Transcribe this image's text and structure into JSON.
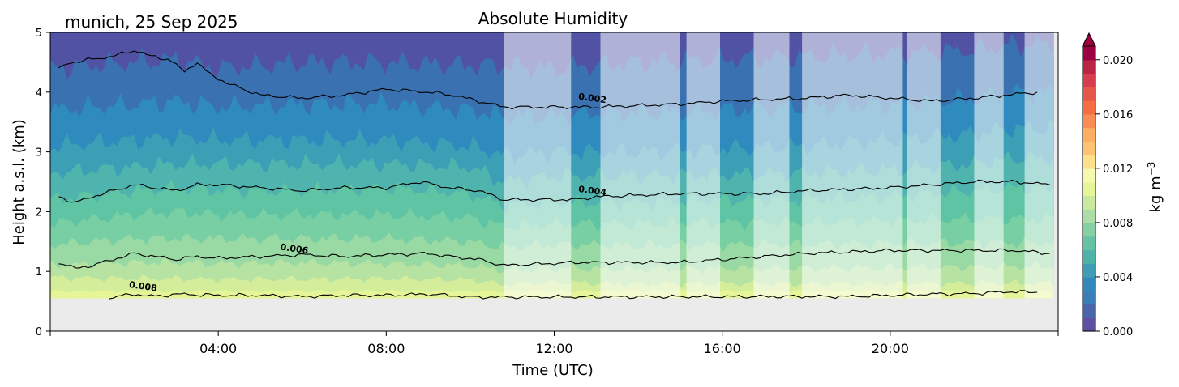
{
  "chart_data": {
    "type": "contour",
    "title": "Absolute Humidity",
    "location_date": "munich, 25 Sep 2025",
    "xlabel": "Time (UTC)",
    "ylabel": "Height a.s.l. (km)",
    "xlim_hours": [
      0,
      24
    ],
    "ylim_km": [
      0,
      5
    ],
    "x_ticks": [
      {
        "hour": 4,
        "label": "04:00"
      },
      {
        "hour": 8,
        "label": "08:00"
      },
      {
        "hour": 12,
        "label": "12:00"
      },
      {
        "hour": 16,
        "label": "16:00"
      },
      {
        "hour": 20,
        "label": "20:00"
      }
    ],
    "y_ticks": [
      {
        "value": 0,
        "label": "0"
      },
      {
        "value": 1,
        "label": "1"
      },
      {
        "value": 2,
        "label": "2"
      },
      {
        "value": 3,
        "label": "3"
      },
      {
        "value": 4,
        "label": "4"
      },
      {
        "value": 5,
        "label": "5"
      }
    ],
    "data_floor_km": 0.55,
    "data_end_hour": 23.9,
    "humidity_levels_kg_m3": [
      0.0,
      0.001,
      0.002,
      0.003,
      0.004,
      0.005,
      0.006,
      0.007,
      0.008,
      0.009,
      0.01
    ],
    "level_colors": [
      "#5152a4",
      "#3a71b1",
      "#2f8abd",
      "#3d9fb6",
      "#4fb4ad",
      "#5ec4a4",
      "#78cfa3",
      "#98d9a4",
      "#b7e3a2",
      "#d4ed9a",
      "#e6f598"
    ],
    "band_top_profiles_km": {
      "hours": [
        0,
        2,
        3,
        4,
        6,
        8,
        10,
        10.8,
        12,
        13,
        14,
        16,
        18,
        20,
        22,
        23
      ],
      "bands": [
        [
          0.9,
          0.88,
          0.88,
          0.87,
          0.87,
          0.88,
          0.86,
          0.78,
          0.82,
          0.8,
          0.78,
          0.8,
          0.79,
          0.8,
          0.8,
          0.8
        ],
        [
          1.1,
          1.15,
          1.15,
          1.13,
          1.15,
          1.13,
          1.1,
          1.02,
          1.05,
          1.05,
          1.03,
          1.05,
          1.05,
          1.06,
          1.08,
          1.08
        ],
        [
          1.45,
          1.55,
          1.55,
          1.55,
          1.55,
          1.55,
          1.5,
          1.4,
          1.45,
          1.45,
          1.43,
          1.45,
          1.45,
          1.47,
          1.48,
          1.48
        ],
        [
          1.8,
          1.95,
          2.0,
          1.95,
          1.95,
          1.95,
          1.9,
          1.75,
          1.8,
          1.8,
          1.8,
          1.82,
          1.82,
          1.85,
          1.88,
          1.88
        ],
        [
          2.2,
          2.35,
          2.4,
          2.35,
          2.35,
          2.4,
          2.3,
          2.1,
          2.15,
          2.15,
          2.15,
          2.2,
          2.2,
          2.25,
          2.35,
          2.4
        ],
        [
          2.65,
          2.75,
          2.8,
          2.8,
          2.8,
          2.8,
          2.75,
          2.5,
          2.6,
          2.6,
          2.6,
          2.62,
          2.65,
          2.7,
          2.8,
          2.9
        ],
        [
          3.1,
          3.2,
          3.25,
          3.2,
          3.2,
          3.2,
          3.1,
          2.95,
          3.0,
          3.0,
          3.0,
          3.05,
          3.1,
          3.2,
          3.3,
          3.4
        ],
        [
          3.7,
          3.8,
          3.85,
          3.75,
          3.8,
          3.8,
          3.7,
          3.6,
          3.6,
          3.65,
          3.65,
          3.7,
          3.75,
          3.8,
          3.9,
          4.0
        ],
        [
          4.4,
          4.5,
          4.55,
          4.4,
          4.5,
          4.5,
          4.45,
          4.45,
          4.4,
          4.45,
          4.5,
          4.55,
          4.6,
          4.65,
          4.7,
          4.8
        ],
        [
          5.0,
          5.0,
          5.0,
          5.0,
          5.0,
          5.0,
          5.0,
          5.0,
          5.0,
          5.0,
          5.0,
          5.0,
          5.0,
          5.0,
          5.0,
          5.0
        ]
      ]
    },
    "contour_lines": [
      {
        "label": "0.002",
        "label_hour": 12.9,
        "label_km": 3.85,
        "points": [
          [
            0.2,
            4.4
          ],
          [
            0.5,
            4.5
          ],
          [
            1,
            4.55
          ],
          [
            1.5,
            4.6
          ],
          [
            2,
            4.7
          ],
          [
            2.3,
            4.62
          ],
          [
            2.8,
            4.55
          ],
          [
            3.2,
            4.35
          ],
          [
            3.5,
            4.5
          ],
          [
            3.7,
            4.35
          ],
          [
            4.2,
            4.15
          ],
          [
            5,
            3.95
          ],
          [
            6,
            3.9
          ],
          [
            7,
            3.95
          ],
          [
            8,
            4.05
          ],
          [
            9,
            4.0
          ],
          [
            9.6,
            3.95
          ],
          [
            10.8,
            3.75
          ],
          [
            12.5,
            3.75
          ],
          [
            13,
            3.75
          ],
          [
            15,
            3.8
          ],
          [
            16,
            3.85
          ],
          [
            18,
            3.9
          ],
          [
            19,
            3.95
          ],
          [
            20,
            3.9
          ],
          [
            21,
            3.85
          ],
          [
            22,
            3.9
          ],
          [
            23.5,
            4.0
          ]
        ]
      },
      {
        "label": "0.004",
        "label_hour": 12.9,
        "label_km": 2.3,
        "points": [
          [
            0.2,
            2.25
          ],
          [
            0.6,
            2.15
          ],
          [
            1,
            2.25
          ],
          [
            1.5,
            2.35
          ],
          [
            2,
            2.45
          ],
          [
            2.5,
            2.4
          ],
          [
            3,
            2.35
          ],
          [
            3.5,
            2.45
          ],
          [
            4,
            2.45
          ],
          [
            5,
            2.4
          ],
          [
            6,
            2.35
          ],
          [
            7,
            2.4
          ],
          [
            8,
            2.4
          ],
          [
            8.8,
            2.5
          ],
          [
            9.5,
            2.4
          ],
          [
            10.2,
            2.35
          ],
          [
            10.8,
            2.2
          ],
          [
            12.5,
            2.2
          ],
          [
            13,
            2.25
          ],
          [
            15,
            2.3
          ],
          [
            16,
            2.3
          ],
          [
            17,
            2.3
          ],
          [
            18,
            2.35
          ],
          [
            20,
            2.4
          ],
          [
            21,
            2.45
          ],
          [
            22,
            2.5
          ],
          [
            23,
            2.5
          ],
          [
            23.8,
            2.45
          ]
        ]
      },
      {
        "label": "0.006",
        "label_hour": 5.8,
        "label_km": 1.33,
        "points": [
          [
            0.2,
            1.15
          ],
          [
            0.6,
            1.05
          ],
          [
            1,
            1.1
          ],
          [
            1.5,
            1.2
          ],
          [
            2,
            1.3
          ],
          [
            2.5,
            1.25
          ],
          [
            3,
            1.2
          ],
          [
            3.5,
            1.25
          ],
          [
            4,
            1.22
          ],
          [
            5,
            1.25
          ],
          [
            6,
            1.28
          ],
          [
            7,
            1.25
          ],
          [
            8,
            1.28
          ],
          [
            9,
            1.3
          ],
          [
            9.5,
            1.25
          ],
          [
            10.2,
            1.2
          ],
          [
            10.8,
            1.1
          ],
          [
            12.5,
            1.15
          ],
          [
            13,
            1.15
          ],
          [
            15,
            1.15
          ],
          [
            16,
            1.2
          ],
          [
            17,
            1.25
          ],
          [
            18,
            1.3
          ],
          [
            20,
            1.35
          ],
          [
            21,
            1.35
          ],
          [
            22,
            1.35
          ],
          [
            23,
            1.35
          ],
          [
            23.8,
            1.3
          ]
        ]
      },
      {
        "label": "0.008",
        "label_hour": 2.2,
        "label_km": 0.7,
        "points": [
          [
            1.4,
            0.56
          ],
          [
            2,
            0.62
          ],
          [
            2.5,
            0.58
          ],
          [
            3,
            0.62
          ],
          [
            4,
            0.6
          ],
          [
            5,
            0.6
          ],
          [
            6,
            0.58
          ],
          [
            7,
            0.6
          ],
          [
            8,
            0.6
          ],
          [
            9,
            0.62
          ],
          [
            9.5,
            0.6
          ],
          [
            10,
            0.57
          ],
          [
            18,
            0.58
          ],
          [
            19,
            0.58
          ],
          [
            20,
            0.6
          ],
          [
            21,
            0.62
          ],
          [
            22,
            0.63
          ],
          [
            22.8,
            0.66
          ],
          [
            23.5,
            0.65
          ]
        ]
      }
    ],
    "masked_periods_hours": [
      [
        10.8,
        12.4
      ],
      [
        13.1,
        15.0
      ],
      [
        15.15,
        15.95
      ],
      [
        16.75,
        17.6
      ],
      [
        17.9,
        20.3
      ],
      [
        20.4,
        21.2
      ],
      [
        22.0,
        22.7
      ],
      [
        23.2,
        23.9
      ]
    ],
    "colorbar": {
      "label_base": "kg m",
      "label_exponent": "−3",
      "range": [
        0.0,
        0.021
      ],
      "ticks": [
        {
          "value": 0.0,
          "label": "0.000"
        },
        {
          "value": 0.004,
          "label": "0.004"
        },
        {
          "value": 0.008,
          "label": "0.008"
        },
        {
          "value": 0.012,
          "label": "0.012"
        },
        {
          "value": 0.016,
          "label": "0.016"
        },
        {
          "value": 0.02,
          "label": "0.020"
        }
      ],
      "colors": [
        "#5e4fa2",
        "#4b65ad",
        "#3a7db8",
        "#3288bd",
        "#3f9cb5",
        "#4eb3a9",
        "#66c2a5",
        "#87d0a4",
        "#abdda4",
        "#c9e99e",
        "#e6f598",
        "#f5f9ae",
        "#fee08b",
        "#fdc373",
        "#fdae61",
        "#f98c52",
        "#f46d43",
        "#e55749",
        "#d53e4f",
        "#bc2446",
        "#9e0142"
      ]
    },
    "no_data_color": "#ebebeb",
    "mask_color": "#ffffff",
    "mask_opacity": 0.55
  }
}
